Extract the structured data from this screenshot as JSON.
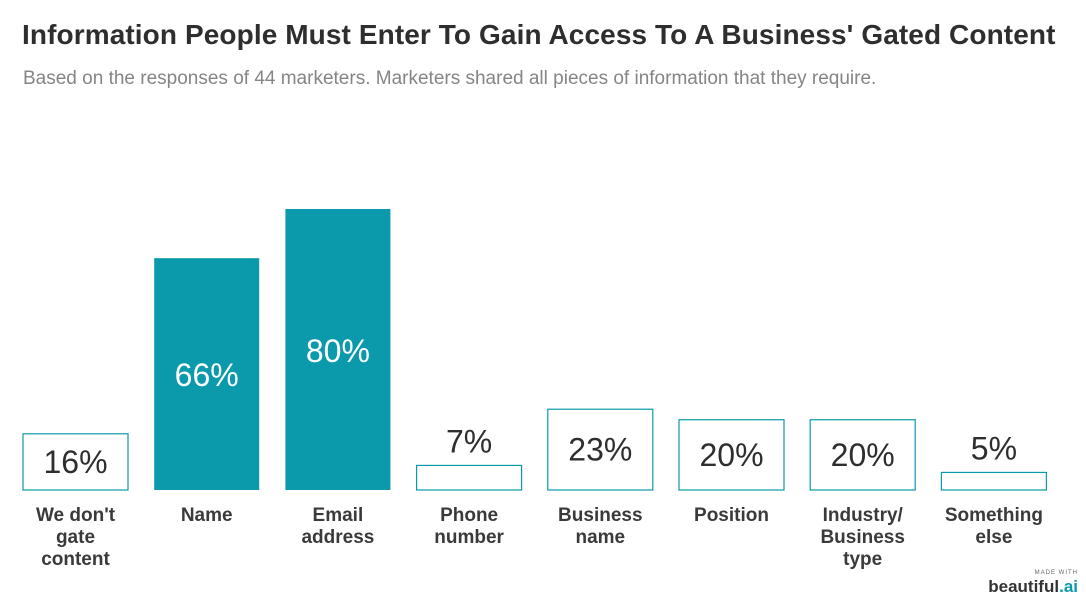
{
  "title": "Information People Must Enter To Gain Access To A Business' Gated Content",
  "subtitle": "Based on the responses of 44 marketers. Marketers shared all pieces of information that they require.",
  "watermark": {
    "made_with": "MADE WITH",
    "brand": "beautiful",
    "brand_suffix": ".ai"
  },
  "colors": {
    "accent": "#0b9aab",
    "text": "#2e2e2e",
    "subtitle": "#858585"
  },
  "chart_data": {
    "type": "bar",
    "title": "Information People Must Enter To Gain Access To A Business' Gated Content",
    "subtitle": "Based on the responses of 44 marketers. Marketers shared all pieces of information that they require.",
    "categories": [
      "We don't gate content",
      "Name",
      "Email address",
      "Phone number",
      "Business name",
      "Position",
      "Industry/ Business type",
      "Something else"
    ],
    "category_lines": [
      [
        "We don't",
        "gate",
        "content"
      ],
      [
        "Name"
      ],
      [
        "Email",
        "address"
      ],
      [
        "Phone",
        "number"
      ],
      [
        "Business",
        "name"
      ],
      [
        "Position"
      ],
      [
        "Industry/",
        "Business",
        "type"
      ],
      [
        "Something",
        "else"
      ]
    ],
    "values": [
      16,
      66,
      80,
      7,
      23,
      20,
      20,
      5
    ],
    "value_labels": [
      "16%",
      "66%",
      "80%",
      "7%",
      "23%",
      "20%",
      "20%",
      "5%"
    ],
    "highlighted": [
      false,
      true,
      true,
      false,
      false,
      false,
      false,
      false
    ],
    "unit": "%",
    "ylim": [
      0,
      80
    ],
    "grid": false,
    "legend": "none",
    "xlabel": "",
    "ylabel": ""
  }
}
